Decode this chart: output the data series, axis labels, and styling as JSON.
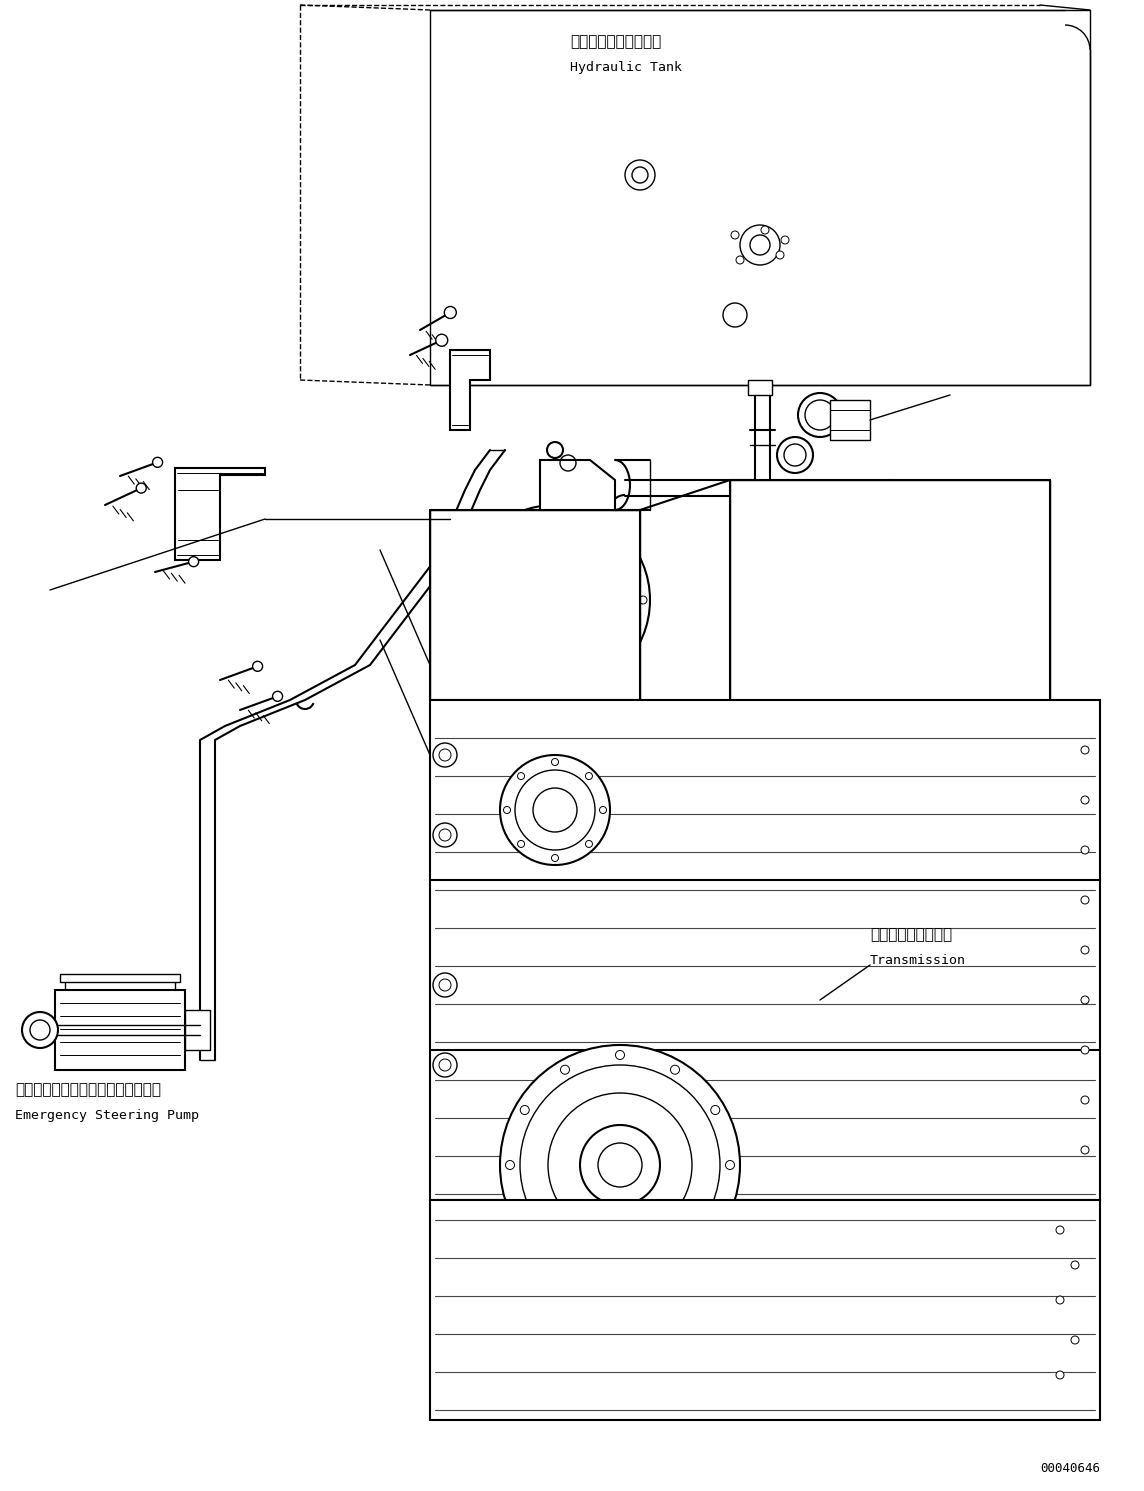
{
  "background_color": "#ffffff",
  "line_color": "#000000",
  "text_color": "#000000",
  "figsize": [
    11.44,
    14.91
  ],
  "dpi": 100,
  "labels": {
    "hydraulic_tank_jp": "ハイドロリックタンク",
    "hydraulic_tank_en": "Hydraulic Tank",
    "emergency_pump_jp": "エマージェンシステアリングポンプ",
    "emergency_pump_en": "Emergency Steering Pump",
    "transmission_jp": "トランスミッション",
    "transmission_en": "Transmission",
    "part_number": "00040646"
  },
  "fonts": {
    "jp_size": 11,
    "en_size": 9.5,
    "part_number_size": 9
  }
}
